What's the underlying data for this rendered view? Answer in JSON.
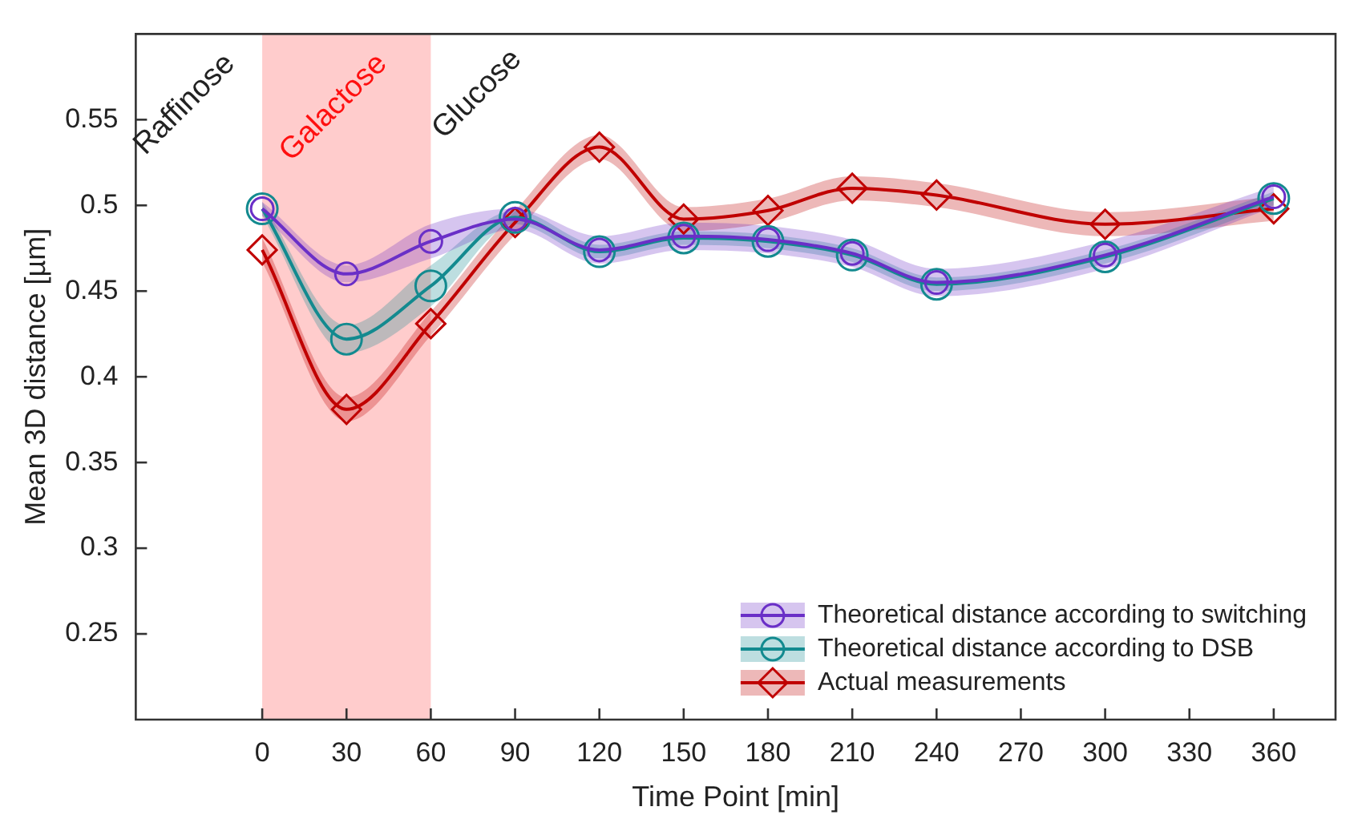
{
  "chart_data": {
    "type": "line",
    "xlabel": "Time Point [min]",
    "ylabel": "Mean 3D distance [µm]",
    "x": [
      0,
      30,
      60,
      90,
      120,
      150,
      180,
      210,
      240,
      300,
      360
    ],
    "xlim": [
      -45,
      382
    ],
    "xticks": [
      0,
      30,
      60,
      90,
      120,
      150,
      180,
      210,
      240,
      270,
      300,
      330,
      360
    ],
    "ylim": [
      0.2,
      0.6
    ],
    "yticks": [
      0.25,
      0.3,
      0.35,
      0.4,
      0.45,
      0.5,
      0.55
    ],
    "legend": "bottom right",
    "line_style": "solid",
    "bands": [
      {
        "axis": "x",
        "from": 0,
        "to": 60,
        "label": "Galactose",
        "color": "#ffcccc"
      }
    ],
    "annotations": [
      "Raffinose",
      "Glucose"
    ],
    "series": [
      {
        "name": "Theoretical distance according to switching",
        "color": "#6a2fc7",
        "marker": "circle",
        "values": [
          0.498,
          0.46,
          0.479,
          0.492,
          0.474,
          0.482,
          0.48,
          0.472,
          0.455,
          0.471,
          0.505
        ],
        "lower": [
          0.494,
          0.455,
          0.469,
          0.486,
          0.466,
          0.474,
          0.472,
          0.464,
          0.447,
          0.463,
          0.499
        ],
        "upper": [
          0.502,
          0.465,
          0.489,
          0.498,
          0.482,
          0.49,
          0.488,
          0.48,
          0.463,
          0.479,
          0.511
        ]
      },
      {
        "name": "Theoretical distance according to DSB",
        "color": "#138a8f",
        "marker": "circle",
        "values": [
          0.498,
          0.422,
          0.453,
          0.493,
          0.473,
          0.481,
          0.479,
          0.471,
          0.454,
          0.47,
          0.504
        ],
        "lower": [
          0.494,
          0.414,
          0.441,
          0.489,
          0.469,
          0.477,
          0.475,
          0.467,
          0.45,
          0.466,
          0.5
        ],
        "upper": [
          0.502,
          0.43,
          0.465,
          0.497,
          0.477,
          0.485,
          0.483,
          0.475,
          0.458,
          0.474,
          0.508
        ]
      },
      {
        "name": "Actual measurements",
        "color": "#c00000",
        "marker": "diamond",
        "values": [
          0.474,
          0.381,
          0.431,
          0.49,
          0.534,
          0.492,
          0.497,
          0.51,
          0.506,
          0.489,
          0.498
        ],
        "lower": [
          0.467,
          0.374,
          0.424,
          0.483,
          0.527,
          0.485,
          0.49,
          0.503,
          0.499,
          0.482,
          0.491
        ],
        "upper": [
          0.481,
          0.388,
          0.438,
          0.497,
          0.541,
          0.499,
          0.504,
          0.517,
          0.513,
          0.496,
          0.505
        ]
      }
    ]
  }
}
